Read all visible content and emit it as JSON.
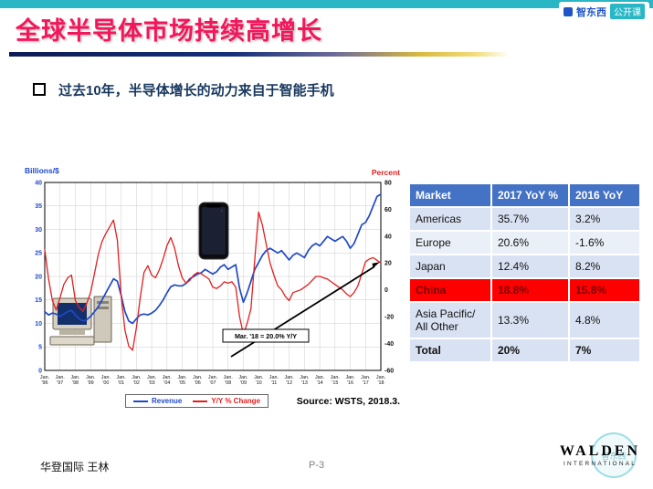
{
  "slide": {
    "title": "全球半导体市场持续高增长",
    "bullet": "过去10年，半导体增长的动力来自于智能手机",
    "footer_left": "华登国际 王林",
    "page_number": "P-3"
  },
  "logo": {
    "brand": "智东西",
    "badge": "公开课"
  },
  "walden": {
    "name": "WALDEN",
    "subtitle": "INTERNATIONAL",
    "watermark": "智东西"
  },
  "colors": {
    "teal": "#29B7C6",
    "title-red": "#F5155B",
    "header-blue": "#4472C4",
    "china-red": "#FF0000",
    "revenue-blue": "#1F49C7",
    "yoy-red": "#E21F1F"
  },
  "chart_data": {
    "type": "line",
    "x_tick_prefix": "Jan.",
    "x_ticks": [
      "'96",
      "'97",
      "'98",
      "'99",
      "'00",
      "'01",
      "'02",
      "'03",
      "'04",
      "'05",
      "'06",
      "'07",
      "'08",
      "'09",
      "'10",
      "'11",
      "'12",
      "'13",
      "'14",
      "'15",
      "'16",
      "'17",
      "'18"
    ],
    "points_per_year": 4,
    "left_axis": {
      "label": "Billions/$",
      "min": 0,
      "max": 40,
      "step": 5
    },
    "right_axis": {
      "label": "Percent",
      "min": -60,
      "max": 80,
      "step": 20
    },
    "annotation": "Mar. '18 = 20.0% Y/Y",
    "source": "Source: WSTS, 2018.3.",
    "legend_position": "bottom",
    "grid": true,
    "series": [
      {
        "name": "Revenue",
        "axis": "left",
        "color": "#1F49C7",
        "width": 1.7,
        "values": [
          12.5,
          11.8,
          12.2,
          12.0,
          11.5,
          12.0,
          12.5,
          12.8,
          11.8,
          11.0,
          10.5,
          10.8,
          11.5,
          12.5,
          13.5,
          15.0,
          16.5,
          18.0,
          19.5,
          19.0,
          16.0,
          12.5,
          10.5,
          10.0,
          11.0,
          11.8,
          12.0,
          11.8,
          12.2,
          12.8,
          13.8,
          15.0,
          16.5,
          17.8,
          18.2,
          18.0,
          18.0,
          18.5,
          19.5,
          20.0,
          20.5,
          20.8,
          21.5,
          21.0,
          20.5,
          21.0,
          22.0,
          22.5,
          21.5,
          22.0,
          22.5,
          17.5,
          14.5,
          16.5,
          19.0,
          21.5,
          23.0,
          24.5,
          25.5,
          26.0,
          25.5,
          25.0,
          25.5,
          24.5,
          23.5,
          24.5,
          25.0,
          24.5,
          24.0,
          25.5,
          26.5,
          27.0,
          26.5,
          27.5,
          28.5,
          28.0,
          27.5,
          28.0,
          28.5,
          27.5,
          26.0,
          27.0,
          29.0,
          31.0,
          31.5,
          33.0,
          35.0,
          37.0,
          37.5
        ]
      },
      {
        "name": "Y/Y % Change",
        "axis": "right",
        "color": "#E21F1F",
        "width": 1.3,
        "values": [
          30,
          8,
          -8,
          -15,
          -6,
          4,
          9,
          11,
          -8,
          -13,
          -16,
          -10,
          -2,
          12,
          26,
          36,
          42,
          47,
          52,
          37,
          -4,
          -30,
          -42,
          -45,
          -28,
          -6,
          13,
          18,
          11,
          9,
          15,
          23,
          33,
          39,
          31,
          18,
          9,
          5,
          7,
          11,
          13,
          12,
          10,
          8,
          2,
          1,
          3,
          6,
          5,
          6,
          2,
          -20,
          -33,
          -25,
          -14,
          23,
          58,
          48,
          34,
          20,
          11,
          3,
          0,
          -5,
          -8,
          -2,
          -1,
          0,
          2,
          4,
          7,
          10,
          10,
          9,
          8,
          6,
          4,
          2,
          0,
          -3,
          -5,
          -2,
          3,
          12,
          21,
          23,
          24,
          22,
          20
        ]
      }
    ]
  },
  "table": {
    "headers": [
      "Market",
      "2017 YoY %",
      "2016 YoY"
    ],
    "rows": [
      {
        "market": "Americas",
        "yoy2017": "35.7%",
        "yoy2016": "3.2%"
      },
      {
        "market": "Europe",
        "yoy2017": "20.6%",
        "yoy2016": "-1.6%"
      },
      {
        "market": "Japan",
        "yoy2017": "12.4%",
        "yoy2016": "8.2%"
      },
      {
        "market": "China",
        "yoy2017": "18.8%",
        "yoy2016": "15.8%",
        "highlight": true
      },
      {
        "market": "Asia Pacific/ All Other",
        "yoy2017": "13.3%",
        "yoy2016": "4.8%"
      },
      {
        "market": "Total",
        "yoy2017": "20%",
        "yoy2016": "7%",
        "bold": true
      }
    ]
  }
}
